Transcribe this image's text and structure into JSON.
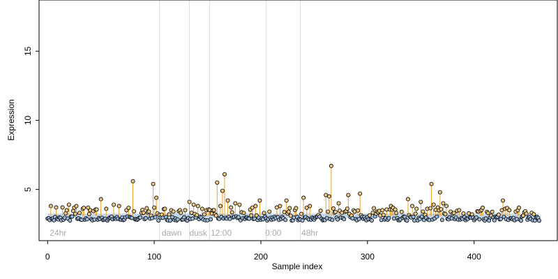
{
  "chart_data": {
    "type": "scatter",
    "xlabel": "Sample index",
    "ylabel": "Expression",
    "xlim": [
      -8,
      478
    ],
    "ylim": [
      1.3,
      18.7
    ],
    "xticks": [
      0,
      100,
      200,
      300,
      400
    ],
    "yticks": [
      5,
      10,
      15
    ],
    "baseline": 3.1,
    "colors": {
      "point_fill_high": "#e8c684",
      "point_fill_low": "#9cb8d8",
      "stem": "#f0a020",
      "baseline_band": "#b8cfe8",
      "separator": "#dddddd"
    },
    "separators_x": [
      105,
      133,
      152,
      205,
      237
    ],
    "group_labels": [
      {
        "text": "24hr",
        "x": 2
      },
      {
        "text": "dawn",
        "x": 107
      },
      {
        "text": "dusk",
        "x": 133
      },
      {
        "text": "12:00",
        "x": 153
      },
      {
        "text": "0:00",
        "x": 204
      },
      {
        "text": "48hr",
        "x": 238
      }
    ],
    "n_points": 462,
    "peaks": [
      [
        3,
        3.8
      ],
      [
        8,
        3.7
      ],
      [
        14,
        3.7
      ],
      [
        20,
        3.9
      ],
      [
        27,
        3.8
      ],
      [
        33,
        3.6
      ],
      [
        40,
        3.5
      ],
      [
        50,
        4.3
      ],
      [
        55,
        3.6
      ],
      [
        62,
        3.9
      ],
      [
        67,
        3.8
      ],
      [
        74,
        3.5
      ],
      [
        80,
        5.6
      ],
      [
        88,
        3.3
      ],
      [
        95,
        3.4
      ],
      [
        99,
        5.4
      ],
      [
        102,
        4.4
      ],
      [
        110,
        3.6
      ],
      [
        118,
        3.4
      ],
      [
        124,
        3.5
      ],
      [
        129,
        3.5
      ],
      [
        133,
        4.1
      ],
      [
        137,
        3.9
      ],
      [
        141,
        3.8
      ],
      [
        145,
        3.6
      ],
      [
        149,
        3.5
      ],
      [
        159,
        5.5
      ],
      [
        162,
        3.8
      ],
      [
        164,
        4.9
      ],
      [
        166,
        6.1
      ],
      [
        169,
        4.2
      ],
      [
        172,
        3.7
      ],
      [
        176,
        4.0
      ],
      [
        180,
        3.9
      ],
      [
        184,
        3.3
      ],
      [
        195,
        3.8
      ],
      [
        199,
        4.2
      ],
      [
        203,
        3.3
      ],
      [
        215,
        3.7
      ],
      [
        218,
        3.8
      ],
      [
        224,
        4.2
      ],
      [
        228,
        3.1
      ],
      [
        240,
        4.4
      ],
      [
        246,
        3.8
      ],
      [
        261,
        4.6
      ],
      [
        264,
        4.5
      ],
      [
        266,
        6.7
      ],
      [
        273,
        4.0
      ],
      [
        282,
        4.6
      ],
      [
        288,
        3.4
      ],
      [
        293,
        4.7
      ],
      [
        309,
        3.4
      ],
      [
        314,
        3.5
      ],
      [
        322,
        3.8
      ],
      [
        327,
        3.3
      ],
      [
        338,
        4.3
      ],
      [
        342,
        3.8
      ],
      [
        346,
        3.6
      ],
      [
        350,
        4.1
      ],
      [
        352,
        3.4
      ],
      [
        356,
        3.6
      ],
      [
        360,
        5.4
      ],
      [
        362,
        3.9
      ],
      [
        366,
        3.7
      ],
      [
        368,
        4.8
      ],
      [
        371,
        4.0
      ],
      [
        374,
        3.8
      ],
      [
        381,
        3.3
      ],
      [
        386,
        3.5
      ],
      [
        398,
        3.2
      ],
      [
        404,
        3.4
      ],
      [
        416,
        3.1
      ],
      [
        427,
        4.2
      ],
      [
        429,
        3.6
      ],
      [
        433,
        3.5
      ],
      [
        441,
        3.5
      ],
      [
        452,
        3.0
      ],
      [
        459,
        3.0
      ]
    ],
    "floor_range": [
      2.75,
      3.05
    ]
  }
}
